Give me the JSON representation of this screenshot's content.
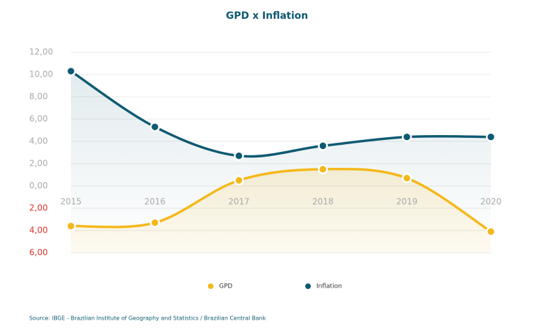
{
  "chart_data": {
    "type": "line",
    "title": "GPD x Inflation",
    "categories": [
      "2015",
      "2016",
      "2017",
      "2018",
      "2019",
      "2020"
    ],
    "series": [
      {
        "name": "GPD",
        "color": "#f4b81a",
        "values": [
          -3.6,
          -3.3,
          0.5,
          1.5,
          0.7,
          -4.1
        ]
      },
      {
        "name": "Inflation",
        "color": "#0e5a72",
        "values": [
          10.3,
          5.3,
          2.7,
          3.6,
          4.4,
          4.4
        ]
      }
    ],
    "ylim": [
      -6,
      12
    ],
    "yticks": [
      {
        "value": 12,
        "label": "12,00"
      },
      {
        "value": 10,
        "label": "10,00"
      },
      {
        "value": 8,
        "label": "8,00"
      },
      {
        "value": 6,
        "label": "6,00"
      },
      {
        "value": 4,
        "label": "4,00"
      },
      {
        "value": 2,
        "label": "2,00"
      },
      {
        "value": 0,
        "label": "0,00"
      },
      {
        "value": -2,
        "label": "2,00"
      },
      {
        "value": -4,
        "label": "4,00"
      },
      {
        "value": -6,
        "label": "6,00"
      }
    ],
    "tick_color": "#a9a9a9",
    "negative_tick_color": "#d9352b",
    "grid": true,
    "legend": "bottom",
    "source": "Source: IBGE - Brazilian Institute of Geography and Statistics / Brazilian Central Bank"
  }
}
